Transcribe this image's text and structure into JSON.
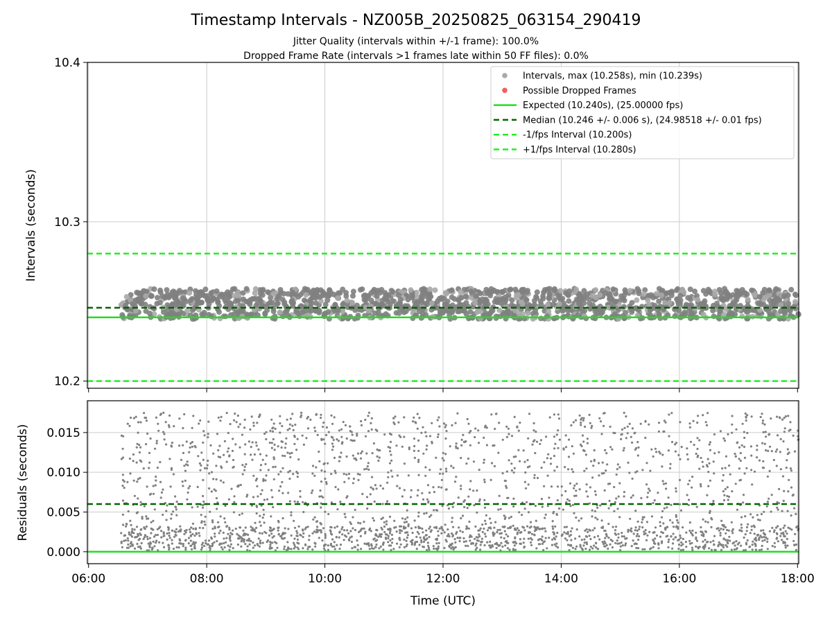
{
  "chart_data": [
    {
      "type": "scatter",
      "title": "Timestamp Intervals - NZ005B_20250825_063154_290419",
      "subtitle": "Jitter Quality (intervals within +/-1 frame): 100.0%",
      "subtitle2": "Dropped Frame Rate (intervals >1 frames late within 50 FF files): 0.0%",
      "xlabel": "",
      "ylabel": "Intervals (seconds)",
      "xlim": [
        "06:00",
        "18:00"
      ],
      "ylim": [
        10.2,
        10.4
      ],
      "x_ticks": [
        "06:00",
        "08:00",
        "10:00",
        "12:00",
        "14:00",
        "16:00",
        "18:00"
      ],
      "y_ticks": [
        "10.2",
        "10.3",
        "10.4"
      ],
      "grid": true,
      "legend_position": "top-right",
      "data_start": "06:33",
      "interval_max": 10.258,
      "interval_min": 10.239,
      "expected": 10.24,
      "median": 10.246,
      "lower_interval": 10.2,
      "upper_interval": 10.28,
      "series": [
        {
          "name": "Intervals, max (10.258s), min (10.239s)",
          "color": "#a9a9a9",
          "marker": "circle"
        },
        {
          "name": "Possible Dropped Frames",
          "color": "#f06060",
          "marker": "circle"
        },
        {
          "name": "Expected (10.240s), (25.00000 fps)",
          "color": "#22dd22",
          "style": "solid"
        },
        {
          "name": "Median (10.246 +/- 0.006 s), (24.98518 +/- 0.01 fps)",
          "color": "#006400",
          "style": "dashed"
        },
        {
          "name": "-1/fps Interval (10.200s)",
          "color": "#22ee22",
          "style": "dashed"
        },
        {
          "name": "+1/fps Interval (10.280s)",
          "color": "#22ee22",
          "style": "dashed"
        }
      ]
    },
    {
      "type": "scatter",
      "xlabel": "Time (UTC)",
      "ylabel": "Residuals (seconds)",
      "xlim": [
        "06:00",
        "18:00"
      ],
      "ylim": [
        -0.0015,
        0.019
      ],
      "x_ticks": [
        "06:00",
        "08:00",
        "10:00",
        "12:00",
        "14:00",
        "16:00",
        "18:00"
      ],
      "y_ticks": [
        "0.000",
        "0.005",
        "0.010",
        "0.015"
      ],
      "grid": true,
      "residual_range": [
        -0.0005,
        0.0175
      ],
      "median_residual": 0.006,
      "zero_line": 0.0,
      "series": [
        {
          "color": "#808080",
          "marker": "circle"
        },
        {
          "color": "#006400",
          "style": "dashed"
        },
        {
          "color": "#22dd22",
          "style": "solid"
        }
      ]
    }
  ]
}
